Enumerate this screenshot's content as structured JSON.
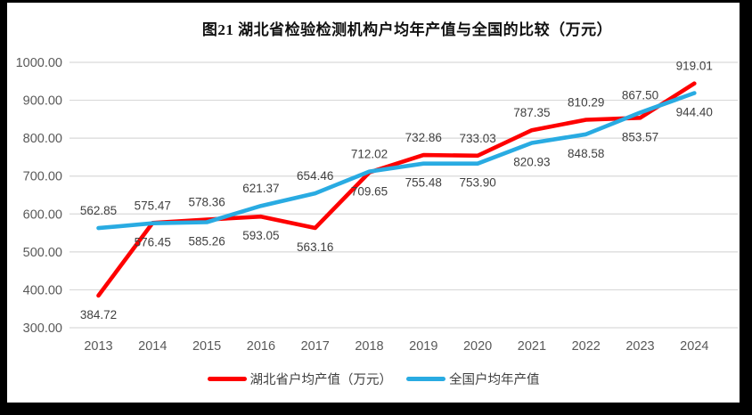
{
  "window": {
    "frame_color": "#000000",
    "background_color": "#ffffff"
  },
  "chart_data": {
    "type": "line",
    "title": "图21  湖北省检验检测机构户均年产值与全国的比较（万元）",
    "categories": [
      "2013",
      "2014",
      "2015",
      "2016",
      "2017",
      "2018",
      "2019",
      "2020",
      "2021",
      "2022",
      "2023",
      "2024"
    ],
    "series": [
      {
        "name": "湖北省户均产值（万元）",
        "color": "#FE0000",
        "label_position": "below",
        "values": [
          384.72,
          576.45,
          585.26,
          593.05,
          563.16,
          709.65,
          755.48,
          753.9,
          820.93,
          848.58,
          853.57,
          944.4
        ]
      },
      {
        "name": "全国户均年产值",
        "color": "#29ABE2",
        "label_position": "above",
        "values": [
          562.85,
          575.47,
          578.36,
          621.37,
          654.46,
          712.02,
          732.86,
          733.03,
          787.35,
          810.29,
          867.5,
          919.01
        ]
      }
    ],
    "ylim": [
      300,
      1000
    ],
    "ytick_step": 100,
    "ytick_labels": [
      "300.00",
      "400.00",
      "500.00",
      "600.00",
      "700.00",
      "800.00",
      "900.00",
      "1000.00"
    ],
    "grid": "horizontal",
    "grid_color": "#D9D9D9",
    "axis_label_color": "#595959",
    "data_label_color": "#404040",
    "legend_position": "bottom",
    "xlabel": "",
    "ylabel": ""
  }
}
